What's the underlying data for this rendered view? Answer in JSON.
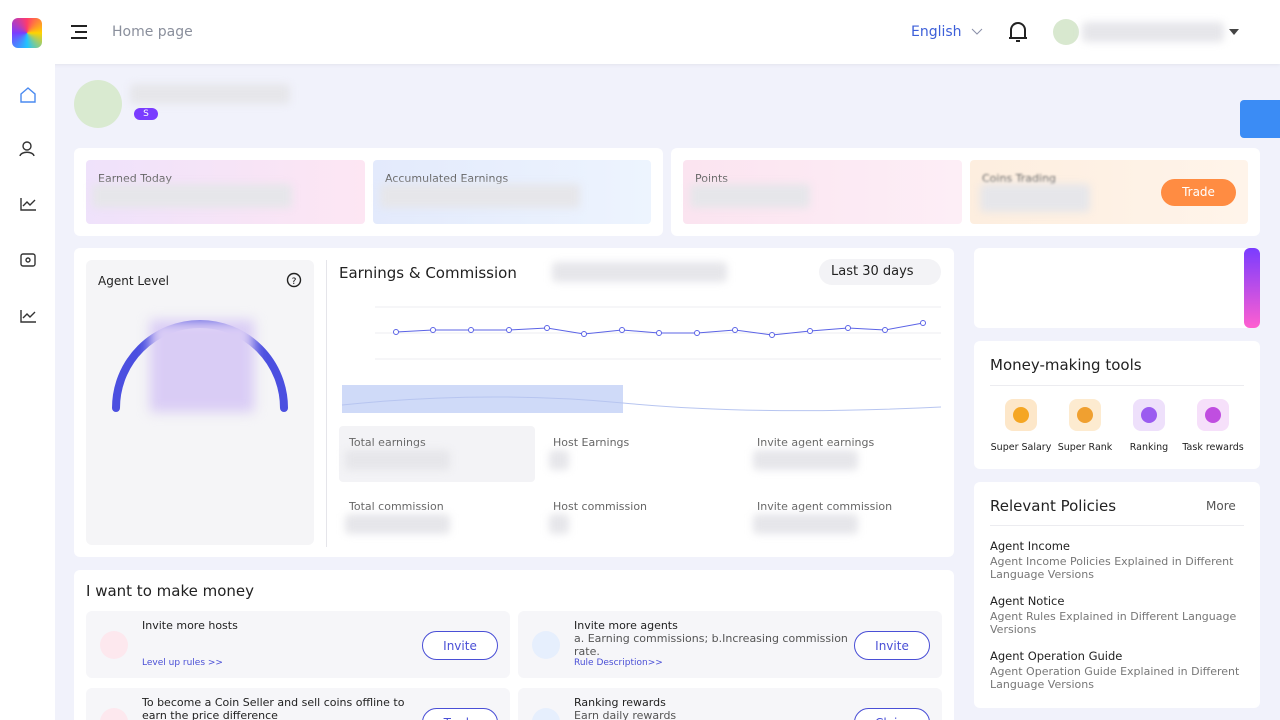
{
  "header": {
    "nav_title": "Home page",
    "language": "English"
  },
  "profile": {
    "badge": "S"
  },
  "stats": {
    "earned_today": "Earned Today",
    "accumulated_earnings": "Accumulated Earnings",
    "points": "Points",
    "coins_trading": "Coins Trading",
    "trade_button": "Trade"
  },
  "agent_level": {
    "title": "Agent Level"
  },
  "earnings": {
    "title": "Earnings & Commission",
    "range": "Last 30 days",
    "metrics": [
      "Total earnings",
      "Host Earnings",
      "Invite agent earnings",
      "Total commission",
      "Host commission",
      "Invite agent commission"
    ]
  },
  "make_money": {
    "title": "I want to make money",
    "tasks": [
      {
        "title": "Invite more hosts",
        "link": "Level up rules >>",
        "button": "Invite"
      },
      {
        "title": "Invite more agents",
        "desc": "a. Earning commissions; b.Increasing commission rate.",
        "link": "Rule Description>>",
        "button": "Invite"
      },
      {
        "title": "To become a Coin Seller and sell coins offline to earn the price difference",
        "button": "Trade"
      },
      {
        "title": "Ranking rewards",
        "desc": "Earn daily rewards",
        "button": "Claim"
      }
    ]
  },
  "tools": {
    "title": "Money-making tools",
    "items": [
      "Super Salary",
      "Super Rank",
      "Ranking",
      "Task rewards"
    ]
  },
  "policies": {
    "title": "Relevant Policies",
    "more": "More",
    "items": [
      {
        "title": "Agent Income",
        "desc": "Agent Income Policies Explained in Different Language Versions"
      },
      {
        "title": "Agent Notice",
        "desc": "Agent Rules Explained in Different Language Versions"
      },
      {
        "title": "Agent Operation Guide",
        "desc": "Agent Operation Guide Explained in Different Language Versions"
      }
    ]
  }
}
